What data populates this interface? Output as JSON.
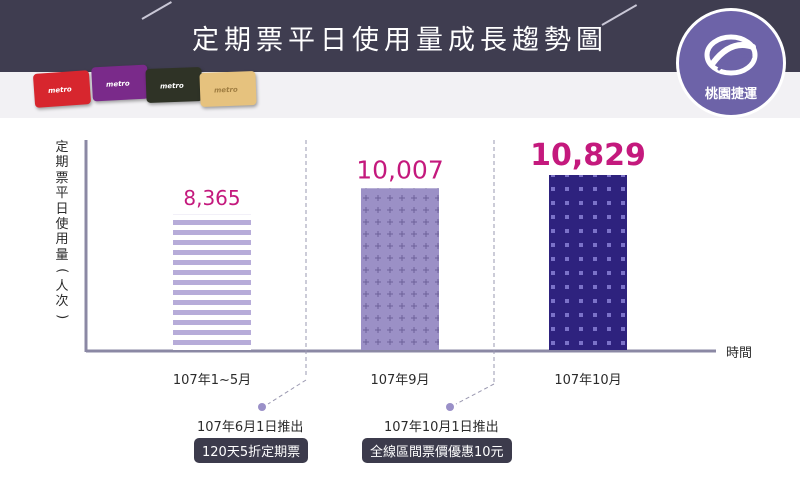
{
  "header": {
    "title": "定期票平日使用量成長趨勢圖",
    "logo_text": "桃園捷運",
    "card_labels": [
      "metro",
      "metro",
      "metro",
      "metro"
    ]
  },
  "colors": {
    "banner": "#3f3d50",
    "accent": "#c4197d",
    "bar_light": "#b7acd9",
    "bar_medium": "#9b90c6",
    "bar_dark": "#2e227e",
    "logo": "#6d63a8"
  },
  "chart_data": {
    "type": "bar",
    "title": "定期票平日使用量成長趨勢圖",
    "ylabel": "定期票平日使用量(人次)",
    "xlabel": "時間",
    "categories": [
      "107年1~5月",
      "107年9月",
      "107年10月"
    ],
    "values": [
      8365,
      10007,
      10829
    ],
    "value_labels": [
      "8,365",
      "10,007",
      "10,829"
    ],
    "ylim": [
      0,
      12500
    ],
    "grid": false,
    "annotations": [
      {
        "text": "107年6月1日推出",
        "badge": "120天5折定期票"
      },
      {
        "text": "107年10月1日推出",
        "badge": "全線區間票價優惠10元"
      }
    ]
  }
}
